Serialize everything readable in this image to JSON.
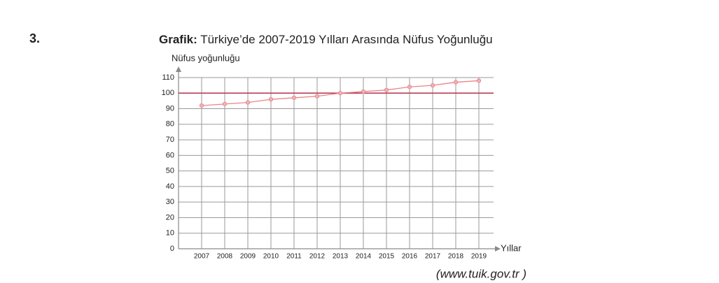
{
  "question_number": "3.",
  "source": "(www.tuik.gov.tr )",
  "chart_data": {
    "type": "line",
    "title_label": "Grafik:",
    "title": "Türkiye’de 2007-2019 Yılları Arasında Nüfus Yoğunluğu",
    "y_label": "Nüfus yoğunluğu",
    "x_label": "Yıllar",
    "categories": [
      "2007",
      "2008",
      "2009",
      "2010",
      "2011",
      "2012",
      "2013",
      "2014",
      "2015",
      "2016",
      "2017",
      "2018",
      "2019"
    ],
    "values": [
      92,
      93,
      94,
      96,
      97,
      98,
      100,
      101,
      102,
      104,
      105,
      107,
      108
    ],
    "color": "#e8848a",
    "reference_line": 100,
    "reference_color": "#b5304a",
    "ylim": [
      0,
      110
    ],
    "yticks": [
      0,
      10,
      20,
      30,
      40,
      50,
      60,
      70,
      80,
      90,
      100,
      110
    ],
    "grid": true
  }
}
